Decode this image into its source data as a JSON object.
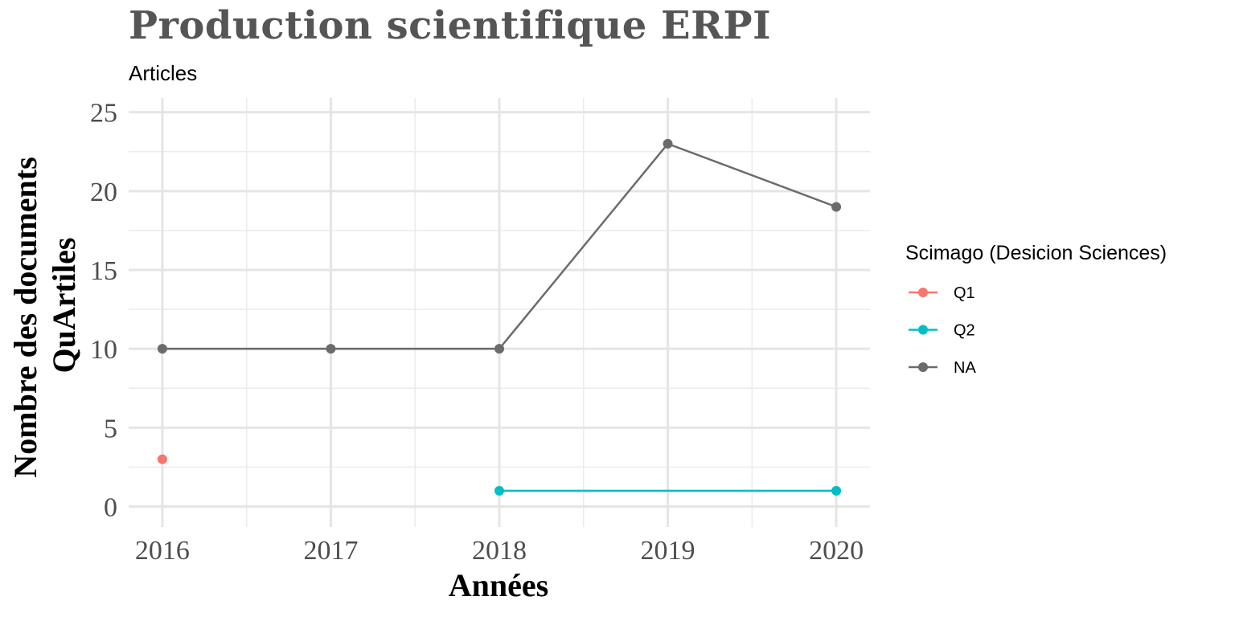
{
  "chart_data": {
    "type": "line",
    "title": "Production scientifique ERPI",
    "subtitle": "Articles",
    "xlabel": "Années",
    "ylabel_lines": [
      "Nombre des documents",
      "QuArtiles"
    ],
    "x": [
      2016,
      2017,
      2018,
      2019,
      2020
    ],
    "xlim": [
      2015.8,
      2020.2
    ],
    "ylim": [
      -1.3,
      25.9
    ],
    "yticks": [
      0,
      5,
      10,
      15,
      20,
      25
    ],
    "grid": true,
    "legend_position": "right",
    "legend_title": "Scimago (Desicion Sciences)",
    "series": [
      {
        "name": "Q1",
        "color": "#F8766D",
        "values": [
          3,
          null,
          null,
          null,
          null
        ]
      },
      {
        "name": "Q2",
        "color": "#00BFC4",
        "values": [
          null,
          null,
          1,
          1,
          1
        ],
        "points": [
          false,
          false,
          true,
          false,
          true
        ]
      },
      {
        "name": "NA",
        "color": "#6b6b6b",
        "values": [
          10,
          10,
          10,
          23,
          19
        ]
      }
    ]
  }
}
